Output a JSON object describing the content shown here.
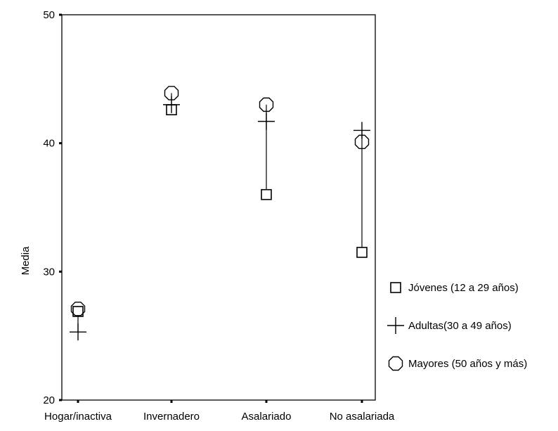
{
  "chart_data": {
    "type": "scatter",
    "title": "",
    "xlabel": "",
    "ylabel": "Media",
    "categories": [
      "Hogar/inactiva",
      "Invernadero",
      "Asalariado",
      "No asalariada"
    ],
    "ylim": [
      20,
      50
    ],
    "yticks": [
      20,
      30,
      40,
      50
    ],
    "grid": false,
    "legend_position": "right",
    "range_lines": true,
    "series": [
      {
        "name": "Jóvenes (12 a 29 años)",
        "marker": "square",
        "values": [
          26.9,
          42.6,
          36.0,
          31.5
        ]
      },
      {
        "name": "Adultas(30 a 49 años)",
        "marker": "plus",
        "values": [
          25.3,
          43.0,
          41.7,
          41.0
        ]
      },
      {
        "name": "Mayores (50 años y más)",
        "marker": "circle",
        "values": [
          27.1,
          43.9,
          43.0,
          40.1
        ]
      }
    ],
    "colors": {
      "marker": "#000000",
      "axis": "#000000",
      "background": "#ffffff"
    }
  }
}
